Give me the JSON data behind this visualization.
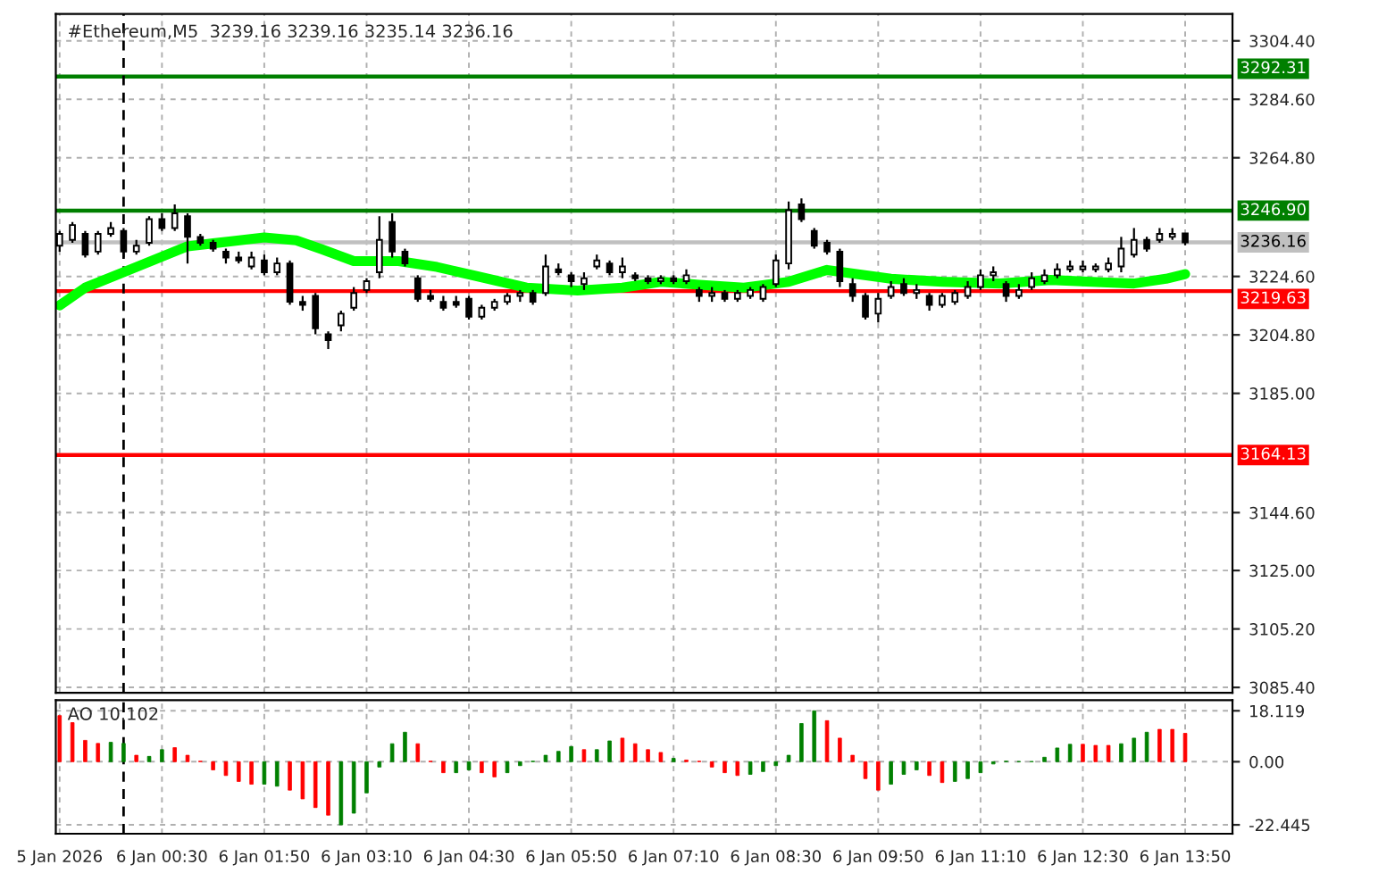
{
  "chart_data": [
    {
      "type": "candlestick",
      "title": "#Ethereum,M5  3239.16 3239.16 3235.14 3236.16",
      "x": [
        "2026-01-05T23:10",
        "2026-01-05T23:20",
        "2026-01-05T23:30",
        "2026-01-05T23:40",
        "2026-01-05T23:50",
        "2026-01-06T00:00",
        "2026-01-06T00:10",
        "2026-01-06T00:20",
        "2026-01-06T00:30",
        "2026-01-06T00:40",
        "2026-01-06T00:50",
        "2026-01-06T01:00",
        "2026-01-06T01:10",
        "2026-01-06T01:20",
        "2026-01-06T01:30",
        "2026-01-06T01:40",
        "2026-01-06T01:50",
        "2026-01-06T02:00",
        "2026-01-06T02:10",
        "2026-01-06T02:20",
        "2026-01-06T02:30",
        "2026-01-06T02:40",
        "2026-01-06T02:50",
        "2026-01-06T03:00",
        "2026-01-06T03:10",
        "2026-01-06T03:20",
        "2026-01-06T03:30",
        "2026-01-06T03:40",
        "2026-01-06T03:50",
        "2026-01-06T04:00",
        "2026-01-06T04:10",
        "2026-01-06T04:20",
        "2026-01-06T04:30",
        "2026-01-06T04:40",
        "2026-01-06T04:50",
        "2026-01-06T05:00",
        "2026-01-06T05:10",
        "2026-01-06T05:20",
        "2026-01-06T05:30",
        "2026-01-06T05:40",
        "2026-01-06T05:50",
        "2026-01-06T06:00",
        "2026-01-06T06:10",
        "2026-01-06T06:20",
        "2026-01-06T06:30",
        "2026-01-06T06:40",
        "2026-01-06T06:50",
        "2026-01-06T07:00",
        "2026-01-06T07:10",
        "2026-01-06T07:20",
        "2026-01-06T07:30",
        "2026-01-06T07:40",
        "2026-01-06T07:50",
        "2026-01-06T08:00",
        "2026-01-06T08:10",
        "2026-01-06T08:20",
        "2026-01-06T08:30",
        "2026-01-06T08:40",
        "2026-01-06T08:50",
        "2026-01-06T09:00",
        "2026-01-06T09:10",
        "2026-01-06T09:20",
        "2026-01-06T09:30",
        "2026-01-06T09:40",
        "2026-01-06T09:50",
        "2026-01-06T10:00",
        "2026-01-06T10:10",
        "2026-01-06T10:20",
        "2026-01-06T10:30",
        "2026-01-06T10:40",
        "2026-01-06T10:50",
        "2026-01-06T11:00",
        "2026-01-06T11:10",
        "2026-01-06T11:20",
        "2026-01-06T11:30",
        "2026-01-06T11:40",
        "2026-01-06T11:50",
        "2026-01-06T12:00",
        "2026-01-06T12:10",
        "2026-01-06T12:20",
        "2026-01-06T12:30",
        "2026-01-06T12:40",
        "2026-01-06T12:50",
        "2026-01-06T13:00",
        "2026-01-06T13:10",
        "2026-01-06T13:20",
        "2026-01-06T13:30",
        "2026-01-06T13:40",
        "2026-01-06T13:50"
      ],
      "ohlc": [
        [
          3235,
          3240,
          3233,
          3239
        ],
        [
          3237,
          3243,
          3236,
          3242
        ],
        [
          3239,
          3240,
          3231,
          3232
        ],
        [
          3233,
          3240,
          3232,
          3239
        ],
        [
          3239,
          3243,
          3238,
          3241
        ],
        [
          3240,
          3241,
          3231,
          3233
        ],
        [
          3233,
          3237,
          3232,
          3235
        ],
        [
          3236,
          3245,
          3235,
          3244
        ],
        [
          3244,
          3246,
          3240,
          3241
        ],
        [
          3241,
          3249,
          3240,
          3246
        ],
        [
          3245,
          3246,
          3229,
          3238
        ],
        [
          3238,
          3239,
          3235,
          3236
        ],
        [
          3236,
          3237,
          3233,
          3234
        ],
        [
          3233,
          3234,
          3229,
          3231
        ],
        [
          3231,
          3233,
          3229,
          3230
        ],
        [
          3228,
          3233,
          3227,
          3231
        ],
        [
          3230,
          3232,
          3225,
          3226
        ],
        [
          3226,
          3231,
          3225,
          3229
        ],
        [
          3229,
          3230,
          3215,
          3216
        ],
        [
          3216,
          3218,
          3213,
          3215
        ],
        [
          3218,
          3219,
          3205,
          3207
        ],
        [
          3205,
          3206,
          3200,
          3203
        ],
        [
          3208,
          3213,
          3206,
          3212
        ],
        [
          3214,
          3221,
          3213,
          3219
        ],
        [
          3220,
          3224,
          3219,
          3223
        ],
        [
          3226,
          3245,
          3224,
          3237
        ],
        [
          3243,
          3246,
          3231,
          3233
        ],
        [
          3233,
          3234,
          3228,
          3229
        ],
        [
          3224,
          3225,
          3216,
          3217
        ],
        [
          3218,
          3220,
          3216,
          3217
        ],
        [
          3216,
          3218,
          3213,
          3214
        ],
        [
          3216,
          3218,
          3214,
          3215
        ],
        [
          3217,
          3218,
          3210,
          3211
        ],
        [
          3211,
          3215,
          3210,
          3214
        ],
        [
          3214,
          3217,
          3213,
          3216
        ],
        [
          3216,
          3219,
          3215,
          3218
        ],
        [
          3218,
          3220,
          3216,
          3219
        ],
        [
          3219,
          3220,
          3215,
          3216
        ],
        [
          3219,
          3232,
          3218,
          3228
        ],
        [
          3227,
          3229,
          3225,
          3226
        ],
        [
          3225,
          3226,
          3221,
          3223
        ],
        [
          3222,
          3226,
          3220,
          3224
        ],
        [
          3228,
          3232,
          3227,
          3230
        ],
        [
          3229,
          3230,
          3225,
          3226
        ],
        [
          3226,
          3231,
          3224,
          3228
        ],
        [
          3225,
          3226,
          3223,
          3224
        ],
        [
          3224,
          3225,
          3222,
          3223
        ],
        [
          3223,
          3225,
          3222,
          3224
        ],
        [
          3224,
          3225,
          3222,
          3223
        ],
        [
          3223,
          3227,
          3222,
          3225
        ],
        [
          3220,
          3221,
          3216,
          3218
        ],
        [
          3218,
          3221,
          3216,
          3219
        ],
        [
          3219,
          3220,
          3216,
          3217
        ],
        [
          3217,
          3220,
          3216,
          3219
        ],
        [
          3218,
          3221,
          3217,
          3220
        ],
        [
          3217,
          3222,
          3216,
          3221
        ],
        [
          3222,
          3232,
          3221,
          3230
        ],
        [
          3229,
          3250,
          3227,
          3247
        ],
        [
          3249,
          3251,
          3243,
          3244
        ],
        [
          3240,
          3241,
          3234,
          3235
        ],
        [
          3236,
          3237,
          3232,
          3233
        ],
        [
          3233,
          3234,
          3221,
          3223
        ],
        [
          3222,
          3224,
          3216,
          3218
        ],
        [
          3218,
          3219,
          3210,
          3211
        ],
        [
          3212,
          3219,
          3209,
          3217
        ],
        [
          3218,
          3223,
          3217,
          3221
        ],
        [
          3222,
          3224,
          3218,
          3219
        ],
        [
          3219,
          3222,
          3217,
          3220
        ],
        [
          3218,
          3219,
          3213,
          3215
        ],
        [
          3215,
          3219,
          3214,
          3218
        ],
        [
          3216,
          3220,
          3215,
          3219
        ],
        [
          3218,
          3223,
          3217,
          3221
        ],
        [
          3221,
          3227,
          3220,
          3225
        ],
        [
          3225,
          3228,
          3223,
          3226
        ],
        [
          3222,
          3223,
          3216,
          3218
        ],
        [
          3218,
          3222,
          3217,
          3220
        ],
        [
          3221,
          3226,
          3220,
          3224
        ],
        [
          3223,
          3227,
          3222,
          3225
        ],
        [
          3225,
          3229,
          3224,
          3227
        ],
        [
          3227,
          3230,
          3226,
          3228
        ],
        [
          3227,
          3230,
          3226,
          3228
        ],
        [
          3227,
          3229,
          3226,
          3228
        ],
        [
          3227,
          3231,
          3226,
          3229
        ],
        [
          3228,
          3238,
          3226,
          3234
        ],
        [
          3232,
          3241,
          3231,
          3237
        ],
        [
          3237,
          3238,
          3233,
          3234
        ],
        [
          3237,
          3241,
          3236,
          3239
        ],
        [
          3238,
          3241,
          3237,
          3239
        ],
        [
          3239.16,
          3239.16,
          3235.14,
          3236.16
        ]
      ],
      "series": [
        {
          "type": "line",
          "color": "#00ff00",
          "x": [
            "2026-01-05T23:10",
            "2026-01-05T23:30",
            "2026-01-06T00:10",
            "2026-01-06T00:50",
            "2026-01-06T01:10",
            "2026-01-06T01:50",
            "2026-01-06T02:15",
            "2026-01-06T02:35",
            "2026-01-06T03:00",
            "2026-01-06T03:35",
            "2026-01-06T04:05",
            "2026-01-06T04:35",
            "2026-01-06T05:15",
            "2026-01-06T05:55",
            "2026-01-06T06:30",
            "2026-01-06T07:00",
            "2026-01-06T07:30",
            "2026-01-06T08:05",
            "2026-01-06T08:40",
            "2026-01-06T09:10",
            "2026-01-06T10:00",
            "2026-01-06T10:40",
            "2026-01-06T11:25",
            "2026-01-06T12:05",
            "2026-01-06T12:45",
            "2026-01-06T13:10",
            "2026-01-06T13:35",
            "2026-01-06T13:50"
          ],
          "values": [
            3214.8,
            3220.8,
            3227.8,
            3234.8,
            3235.8,
            3237.8,
            3236.8,
            3233.8,
            3229.8,
            3229.8,
            3227.8,
            3224.8,
            3220.8,
            3219.8,
            3220.8,
            3222.8,
            3221.8,
            3220.8,
            3222.8,
            3226.8,
            3223.8,
            3222.8,
            3222.2,
            3223.4,
            3222.6,
            3222.2,
            3223.8,
            3225.4
          ]
        }
      ],
      "xlim": [
        "2026-01-05T23:07",
        "2026-01-06T14:27"
      ],
      "xticks": [
        {
          "value": "2026-01-05T23:10",
          "label": null
        },
        {
          "value": "2026-01-06T00:30",
          "label": null
        },
        {
          "value": "2026-01-06T01:50",
          "label": null
        },
        {
          "value": "2026-01-06T03:10",
          "label": null
        },
        {
          "value": "2026-01-06T04:30",
          "label": null
        },
        {
          "value": "2026-01-06T05:50",
          "label": null
        },
        {
          "value": "2026-01-06T07:10",
          "label": null
        },
        {
          "value": "2026-01-06T08:30",
          "label": null
        },
        {
          "value": "2026-01-06T09:50",
          "label": null
        },
        {
          "value": "2026-01-06T11:10",
          "label": null
        },
        {
          "value": "2026-01-06T12:30",
          "label": null
        },
        {
          "value": "2026-01-06T13:50",
          "label": null
        }
      ],
      "tick_labels": "y",
      "ylim": [
        3083.6,
        3313.5
      ],
      "yticks": [
        {
          "value": 3304.4,
          "label": "3304.40"
        },
        {
          "value": 3284.6,
          "label": "3284.60"
        },
        {
          "value": 3264.8,
          "label": "3264.80"
        },
        {
          "value": 3224.6,
          "label": "3224.60"
        },
        {
          "value": 3204.8,
          "label": "3204.80"
        },
        {
          "value": 3185.0,
          "label": "3185.00"
        },
        {
          "value": 3144.6,
          "label": "3144.60"
        },
        {
          "value": 3125.0,
          "label": "3125.00"
        },
        {
          "value": 3105.2,
          "label": "3105.20"
        },
        {
          "value": 3085.4,
          "label": "3085.40"
        }
      ],
      "grid": true,
      "ref_lines": [
        {
          "axis": "y",
          "value": 3292.31,
          "label": "3292.31",
          "color": "#007f00"
        },
        {
          "axis": "y",
          "value": 3246.9,
          "label": "3246.90",
          "color": "#007f00"
        },
        {
          "axis": "y",
          "value": 3236.16,
          "label": "3236.16",
          "color": "#c0c0c0"
        },
        {
          "axis": "y",
          "value": 3219.63,
          "label": "3219.63",
          "color": "#ff0000"
        },
        {
          "axis": "y",
          "value": 3164.13,
          "label": "3164.13",
          "color": "#ff0000"
        },
        {
          "axis": "x",
          "value": "2026-01-06T00:00",
          "label": null,
          "color": "#000000",
          "line_style": "dashed"
        }
      ]
    },
    {
      "type": "bar",
      "annotations": [
        "AO 10.102"
      ],
      "x": [
        "2026-01-05T23:10",
        "2026-01-05T23:20",
        "2026-01-05T23:30",
        "2026-01-05T23:40",
        "2026-01-05T23:50",
        "2026-01-06T00:00",
        "2026-01-06T00:10",
        "2026-01-06T00:20",
        "2026-01-06T00:30",
        "2026-01-06T00:40",
        "2026-01-06T00:50",
        "2026-01-06T01:00",
        "2026-01-06T01:10",
        "2026-01-06T01:20",
        "2026-01-06T01:30",
        "2026-01-06T01:40",
        "2026-01-06T01:50",
        "2026-01-06T02:00",
        "2026-01-06T02:10",
        "2026-01-06T02:20",
        "2026-01-06T02:30",
        "2026-01-06T02:40",
        "2026-01-06T02:50",
        "2026-01-06T03:00",
        "2026-01-06T03:10",
        "2026-01-06T03:20",
        "2026-01-06T03:30",
        "2026-01-06T03:40",
        "2026-01-06T03:50",
        "2026-01-06T04:00",
        "2026-01-06T04:10",
        "2026-01-06T04:20",
        "2026-01-06T04:30",
        "2026-01-06T04:40",
        "2026-01-06T04:50",
        "2026-01-06T05:00",
        "2026-01-06T05:10",
        "2026-01-06T05:20",
        "2026-01-06T05:30",
        "2026-01-06T05:40",
        "2026-01-06T05:50",
        "2026-01-06T06:00",
        "2026-01-06T06:10",
        "2026-01-06T06:20",
        "2026-01-06T06:30",
        "2026-01-06T06:40",
        "2026-01-06T06:50",
        "2026-01-06T07:00",
        "2026-01-06T07:10",
        "2026-01-06T07:20",
        "2026-01-06T07:30",
        "2026-01-06T07:40",
        "2026-01-06T07:50",
        "2026-01-06T08:00",
        "2026-01-06T08:10",
        "2026-01-06T08:20",
        "2026-01-06T08:30",
        "2026-01-06T08:40",
        "2026-01-06T08:50",
        "2026-01-06T09:00",
        "2026-01-06T09:10",
        "2026-01-06T09:20",
        "2026-01-06T09:30",
        "2026-01-06T09:40",
        "2026-01-06T09:50",
        "2026-01-06T10:00",
        "2026-01-06T10:10",
        "2026-01-06T10:20",
        "2026-01-06T10:30",
        "2026-01-06T10:40",
        "2026-01-06T10:50",
        "2026-01-06T11:00",
        "2026-01-06T11:10",
        "2026-01-06T11:20",
        "2026-01-06T11:30",
        "2026-01-06T11:40",
        "2026-01-06T11:50",
        "2026-01-06T12:00",
        "2026-01-06T12:10",
        "2026-01-06T12:20",
        "2026-01-06T12:30",
        "2026-01-06T12:40",
        "2026-01-06T12:50",
        "2026-01-06T13:00",
        "2026-01-06T13:10",
        "2026-01-06T13:20",
        "2026-01-06T13:30",
        "2026-01-06T13:40",
        "2026-01-06T13:50"
      ],
      "values": [
        16.4,
        13.9,
        7.6,
        6.5,
        6.9,
        6.5,
        2.3,
        1.9,
        4.3,
        5.0,
        2.3,
        0.2,
        -2.9,
        -4.9,
        -7.0,
        -8.0,
        -8.0,
        -8.7,
        -10.1,
        -13.2,
        -16.3,
        -19.0,
        -22.445,
        -18.3,
        -11.1,
        -1.9,
        6.4,
        10.5,
        6.4,
        0.2,
        -3.9,
        -3.9,
        -2.9,
        -3.9,
        -5.4,
        -3.9,
        -1.4,
        0.2,
        2.3,
        3.7,
        5.4,
        4.3,
        4.3,
        7.4,
        8.4,
        6.4,
        4.3,
        3.3,
        1.2,
        0.6,
        0.2,
        -1.9,
        -3.9,
        -4.9,
        -4.5,
        -3.5,
        -1.4,
        2.3,
        13.6,
        18.119,
        14.6,
        8.4,
        2.3,
        -6.0,
        -10.1,
        -8.0,
        -4.5,
        -2.9,
        -4.9,
        -7.4,
        -7.0,
        -6.0,
        -3.9,
        -0.8,
        0.2,
        0.1,
        0.1,
        1.6,
        4.9,
        6.2,
        6.2,
        5.8,
        5.8,
        6.4,
        8.4,
        10.5,
        11.5,
        11.5,
        10.102
      ],
      "colors": [
        "#ff0000",
        "#ff0000",
        "#ff0000",
        "#ff0000",
        "#008000",
        "#008000",
        "#ff0000",
        "#008000",
        "#008000",
        "#ff0000",
        "#ff0000",
        "#ff0000",
        "#ff0000",
        "#ff0000",
        "#ff0000",
        "#ff0000",
        "#008000",
        "#008000",
        "#ff0000",
        "#ff0000",
        "#ff0000",
        "#ff0000",
        "#008000",
        "#008000",
        "#008000",
        "#008000",
        "#008000",
        "#008000",
        "#ff0000",
        "#ff0000",
        "#ff0000",
        "#008000",
        "#008000",
        "#ff0000",
        "#ff0000",
        "#008000",
        "#008000",
        "#008000",
        "#008000",
        "#008000",
        "#008000",
        "#ff0000",
        "#008000",
        "#008000",
        "#ff0000",
        "#ff0000",
        "#ff0000",
        "#ff0000",
        "#008000",
        "#ff0000",
        "#ff0000",
        "#ff0000",
        "#ff0000",
        "#ff0000",
        "#008000",
        "#008000",
        "#008000",
        "#008000",
        "#008000",
        "#008000",
        "#ff0000",
        "#ff0000",
        "#ff0000",
        "#ff0000",
        "#ff0000",
        "#008000",
        "#008000",
        "#008000",
        "#ff0000",
        "#ff0000",
        "#008000",
        "#008000",
        "#008000",
        "#008000",
        "#008000",
        "#008000",
        "#008000",
        "#008000",
        "#008000",
        "#008000",
        "#ff0000",
        "#ff0000",
        "#ff0000",
        "#008000",
        "#008000",
        "#008000",
        "#ff0000",
        "#ff0000",
        "#ff0000"
      ],
      "xlim": [
        "2026-01-05T23:07",
        "2026-01-06T14:27"
      ],
      "xticks": [
        {
          "value": "2026-01-05T23:10",
          "label": "5 Jan 2026"
        },
        {
          "value": "2026-01-06T00:30",
          "label": "6 Jan 00:30"
        },
        {
          "value": "2026-01-06T01:50",
          "label": "6 Jan 01:50"
        },
        {
          "value": "2026-01-06T03:10",
          "label": "6 Jan 03:10"
        },
        {
          "value": "2026-01-06T04:30",
          "label": "6 Jan 04:30"
        },
        {
          "value": "2026-01-06T05:50",
          "label": "6 Jan 05:50"
        },
        {
          "value": "2026-01-06T07:10",
          "label": "6 Jan 07:10"
        },
        {
          "value": "2026-01-06T08:30",
          "label": "6 Jan 08:30"
        },
        {
          "value": "2026-01-06T09:50",
          "label": "6 Jan 09:50"
        },
        {
          "value": "2026-01-06T11:10",
          "label": "6 Jan 11:10"
        },
        {
          "value": "2026-01-06T12:30",
          "label": "6 Jan 12:30"
        },
        {
          "value": "2026-01-06T13:50",
          "label": "6 Jan 13:50"
        }
      ],
      "ylim": [
        -25.6,
        21.9
      ],
      "yticks": [
        18.119,
        {
          "value": 0,
          "label": "0.00"
        },
        -22.445
      ],
      "grid": true,
      "ref_lines": [
        {
          "axis": "x",
          "value": "2026-01-06T00:00",
          "label": null,
          "color": "#000000",
          "line_style": "dashed"
        }
      ]
    }
  ]
}
